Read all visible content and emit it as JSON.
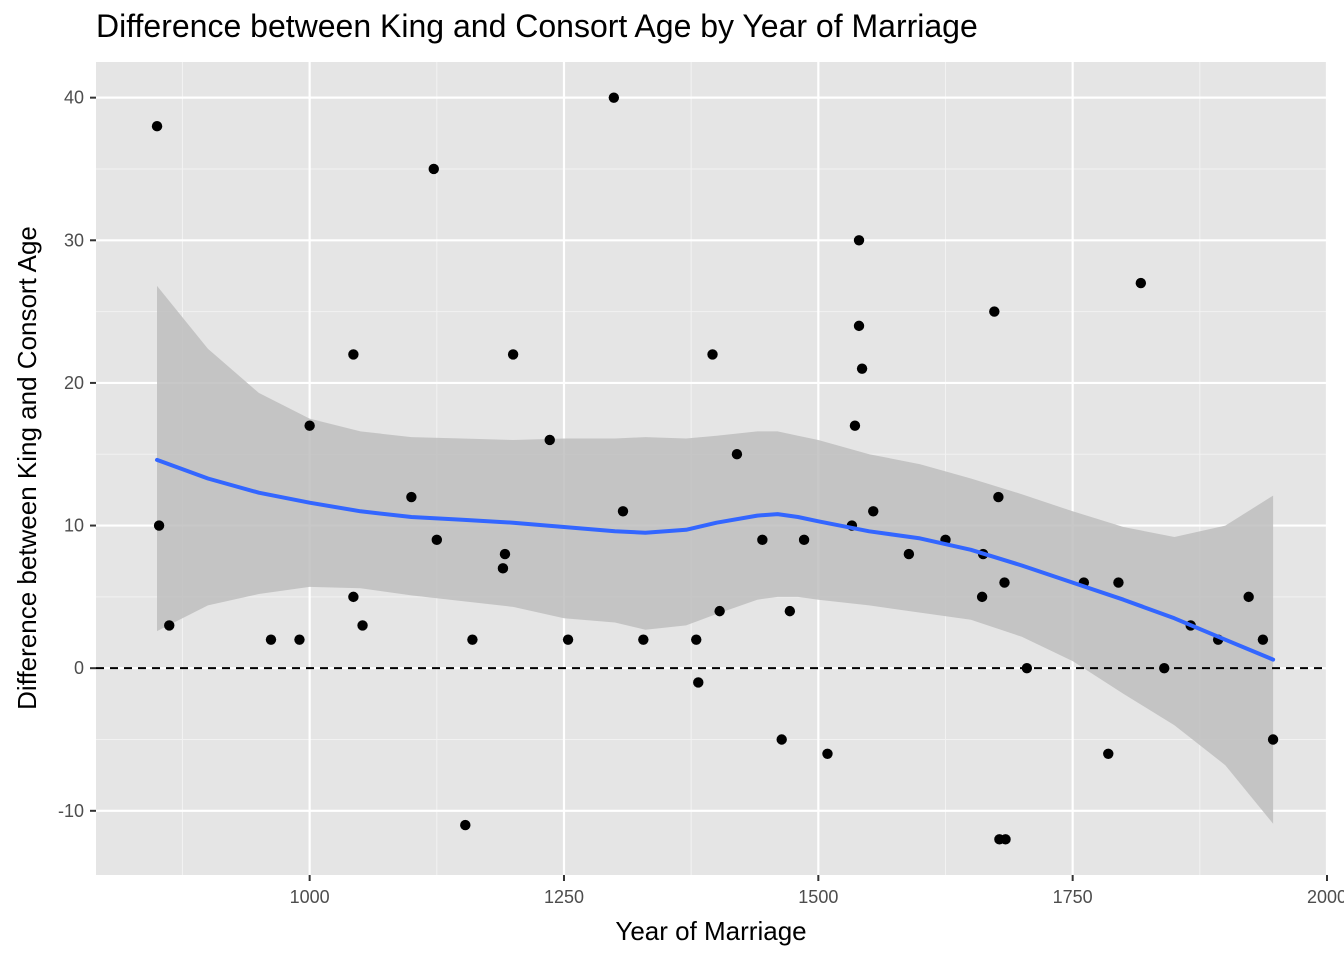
{
  "chart_data": {
    "type": "scatter",
    "title": "Difference between King and Consort Age by Year of Marriage",
    "xlabel": "Year of Marriage",
    "ylabel": "Difference between King and Consort Age",
    "xlim": [
      790,
      2000
    ],
    "ylim": [
      -14.5,
      42.5
    ],
    "x_ticks": [
      1000,
      1250,
      1500,
      1750,
      2000
    ],
    "y_ticks": [
      -10,
      0,
      10,
      20,
      30,
      40
    ],
    "grid": true,
    "background": "#e5e5e5",
    "point_color": "#000000",
    "smooth_color": "#3366ff",
    "ribbon_color": "#bebebe",
    "reference_line": {
      "y": 0,
      "style": "dashed",
      "color": "#000000"
    },
    "points": [
      {
        "x": 850,
        "y": 38
      },
      {
        "x": 852,
        "y": 10
      },
      {
        "x": 862,
        "y": 3
      },
      {
        "x": 962,
        "y": 2
      },
      {
        "x": 990,
        "y": 2
      },
      {
        "x": 1000,
        "y": 17
      },
      {
        "x": 1043,
        "y": 22
      },
      {
        "x": 1043,
        "y": 5
      },
      {
        "x": 1052,
        "y": 3
      },
      {
        "x": 1100,
        "y": 12
      },
      {
        "x": 1122,
        "y": 35
      },
      {
        "x": 1125,
        "y": 9
      },
      {
        "x": 1153,
        "y": -11
      },
      {
        "x": 1160,
        "y": 2
      },
      {
        "x": 1190,
        "y": 7
      },
      {
        "x": 1192,
        "y": 8
      },
      {
        "x": 1200,
        "y": 22
      },
      {
        "x": 1236,
        "y": 16
      },
      {
        "x": 1254,
        "y": 2
      },
      {
        "x": 1299,
        "y": 40
      },
      {
        "x": 1308,
        "y": 11
      },
      {
        "x": 1328,
        "y": 2
      },
      {
        "x": 1380,
        "y": 2
      },
      {
        "x": 1382,
        "y": -1
      },
      {
        "x": 1396,
        "y": 22
      },
      {
        "x": 1403,
        "y": 4
      },
      {
        "x": 1420,
        "y": 15
      },
      {
        "x": 1445,
        "y": 9
      },
      {
        "x": 1464,
        "y": -5
      },
      {
        "x": 1472,
        "y": 4
      },
      {
        "x": 1486,
        "y": 9
      },
      {
        "x": 1509,
        "y": -6
      },
      {
        "x": 1533,
        "y": 10
      },
      {
        "x": 1536,
        "y": 17
      },
      {
        "x": 1540,
        "y": 30
      },
      {
        "x": 1540,
        "y": 24
      },
      {
        "x": 1543,
        "y": 21
      },
      {
        "x": 1554,
        "y": 11
      },
      {
        "x": 1589,
        "y": 8
      },
      {
        "x": 1625,
        "y": 9
      },
      {
        "x": 1661,
        "y": 5
      },
      {
        "x": 1662,
        "y": 8
      },
      {
        "x": 1673,
        "y": 25
      },
      {
        "x": 1677,
        "y": 12
      },
      {
        "x": 1678,
        "y": -12
      },
      {
        "x": 1683,
        "y": 6
      },
      {
        "x": 1684,
        "y": -12
      },
      {
        "x": 1705,
        "y": 0
      },
      {
        "x": 1761,
        "y": 6
      },
      {
        "x": 1785,
        "y": -6
      },
      {
        "x": 1795,
        "y": 6
      },
      {
        "x": 1817,
        "y": 27
      },
      {
        "x": 1840,
        "y": 0
      },
      {
        "x": 1866,
        "y": 3
      },
      {
        "x": 1893,
        "y": 2
      },
      {
        "x": 1923,
        "y": 5
      },
      {
        "x": 1937,
        "y": 2
      },
      {
        "x": 1947,
        "y": -5
      }
    ],
    "smooth": [
      {
        "x": 850,
        "y": 14.6,
        "lo": 2.6,
        "hi": 26.8
      },
      {
        "x": 900,
        "y": 13.3,
        "lo": 4.4,
        "hi": 22.4
      },
      {
        "x": 950,
        "y": 12.3,
        "lo": 5.2,
        "hi": 19.3
      },
      {
        "x": 1000,
        "y": 11.6,
        "lo": 5.7,
        "hi": 17.5
      },
      {
        "x": 1050,
        "y": 11.0,
        "lo": 5.6,
        "hi": 16.6
      },
      {
        "x": 1100,
        "y": 10.6,
        "lo": 5.1,
        "hi": 16.2
      },
      {
        "x": 1150,
        "y": 10.4,
        "lo": 4.7,
        "hi": 16.1
      },
      {
        "x": 1200,
        "y": 10.2,
        "lo": 4.3,
        "hi": 16.0
      },
      {
        "x": 1250,
        "y": 9.9,
        "lo": 3.5,
        "hi": 16.1
      },
      {
        "x": 1300,
        "y": 9.6,
        "lo": 3.2,
        "hi": 16.1
      },
      {
        "x": 1330,
        "y": 9.5,
        "lo": 2.7,
        "hi": 16.2
      },
      {
        "x": 1370,
        "y": 9.7,
        "lo": 3.0,
        "hi": 16.1
      },
      {
        "x": 1400,
        "y": 10.2,
        "lo": 3.8,
        "hi": 16.3
      },
      {
        "x": 1440,
        "y": 10.7,
        "lo": 4.8,
        "hi": 16.6
      },
      {
        "x": 1460,
        "y": 10.8,
        "lo": 5.0,
        "hi": 16.6
      },
      {
        "x": 1480,
        "y": 10.6,
        "lo": 5.0,
        "hi": 16.3
      },
      {
        "x": 1500,
        "y": 10.3,
        "lo": 4.8,
        "hi": 16.0
      },
      {
        "x": 1550,
        "y": 9.6,
        "lo": 4.4,
        "hi": 15.0
      },
      {
        "x": 1600,
        "y": 9.1,
        "lo": 3.9,
        "hi": 14.3
      },
      {
        "x": 1650,
        "y": 8.3,
        "lo": 3.4,
        "hi": 13.3
      },
      {
        "x": 1700,
        "y": 7.2,
        "lo": 2.2,
        "hi": 12.2
      },
      {
        "x": 1750,
        "y": 6.0,
        "lo": 0.5,
        "hi": 11.0
      },
      {
        "x": 1800,
        "y": 4.8,
        "lo": -1.8,
        "hi": 9.9
      },
      {
        "x": 1850,
        "y": 3.5,
        "lo": -4.0,
        "hi": 9.2
      },
      {
        "x": 1900,
        "y": 2.0,
        "lo": -6.8,
        "hi": 10.0
      },
      {
        "x": 1947,
        "y": 0.6,
        "lo": -10.9,
        "hi": 12.1
      }
    ]
  }
}
